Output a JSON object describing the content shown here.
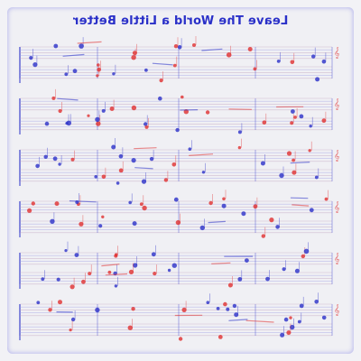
{
  "document": {
    "title": "Leave The World a Little Better",
    "title_color": "#2a30c8",
    "subtitle": "",
    "credit": "",
    "footer": "",
    "ink_blue": "#2a30c8",
    "ink_red": "#e03030",
    "background": "#f0f0f4"
  },
  "score": {
    "systems": 6,
    "lines_per_staff": 5
  }
}
